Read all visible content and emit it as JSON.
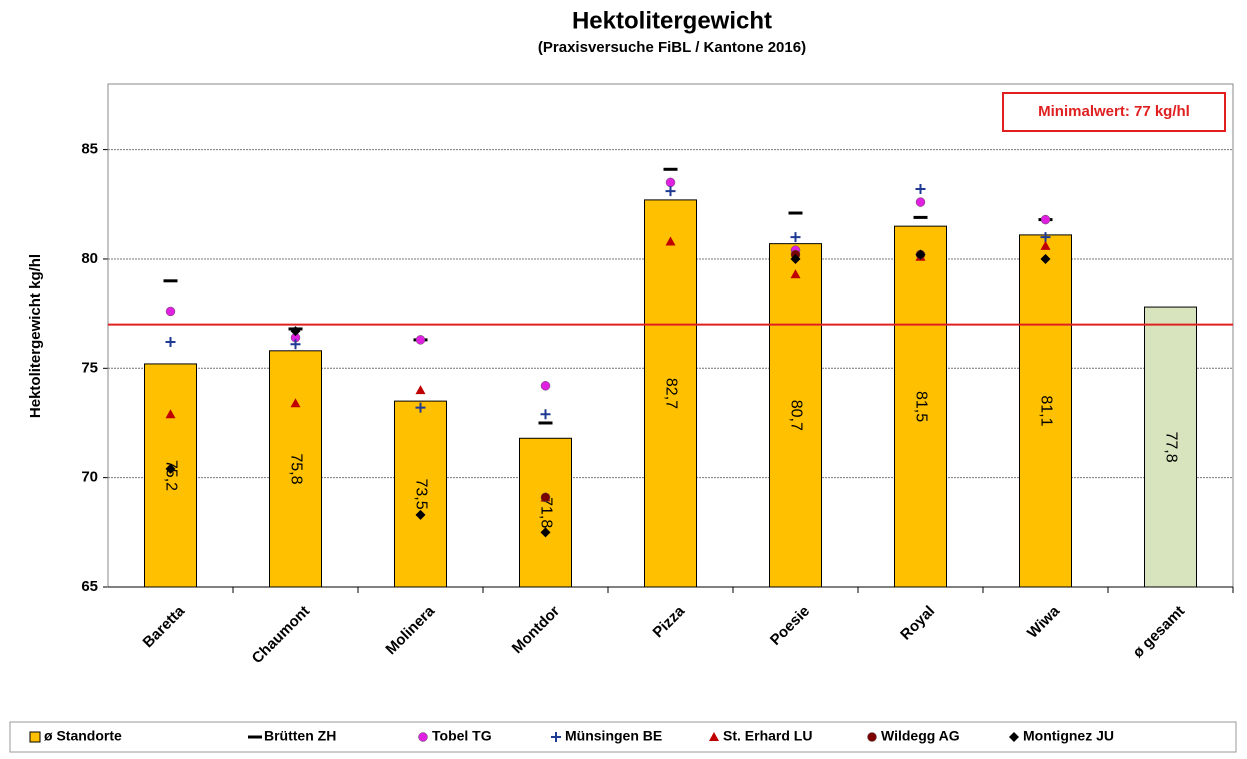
{
  "chart_data": {
    "type": "bar",
    "title": "Hektolitergewicht",
    "subtitle": "(Praxisversuche FiBL / Kantone 2016)",
    "y_label": "Hektolitergewicht kg/hl",
    "categories": [
      "Baretta",
      "Chaumont",
      "Molinera",
      "Montdor",
      "Pizza",
      "Poesie",
      "Royal",
      "Wiwa",
      "ø gesamt"
    ],
    "bar_series": {
      "name": "ø Standorte",
      "color": "#ffc000",
      "colors": [
        "#ffc000",
        "#ffc000",
        "#ffc000",
        "#ffc000",
        "#ffc000",
        "#ffc000",
        "#ffc000",
        "#ffc000",
        "#d7e4bd"
      ],
      "values": [
        75.2,
        75.8,
        73.5,
        71.8,
        82.7,
        80.7,
        81.5,
        81.1,
        77.8
      ],
      "value_labels": [
        "75,2",
        "75,8",
        "73,5",
        "71,8",
        "82,7",
        "80,7",
        "81,5",
        "81,1",
        "77,8"
      ]
    },
    "series": [
      {
        "name": "Brütten ZH",
        "color": "#000000",
        "marker": "dash",
        "values": [
          79.0,
          76.8,
          76.3,
          72.5,
          84.1,
          82.1,
          81.9,
          81.8,
          null
        ]
      },
      {
        "name": "Tobel TG",
        "color": "#e020e0",
        "marker": "circle",
        "values": [
          77.6,
          76.4,
          76.3,
          74.2,
          83.5,
          80.4,
          82.6,
          81.8,
          null
        ]
      },
      {
        "name": "Münsingen BE",
        "color": "#1f3a93",
        "marker": "plus",
        "values": [
          76.2,
          76.1,
          73.2,
          72.9,
          83.1,
          81.0,
          83.2,
          81.0,
          null
        ]
      },
      {
        "name": "St. Erhard LU",
        "color": "#c00000",
        "marker": "triangle",
        "values": [
          72.9,
          73.4,
          74.0,
          69.1,
          80.8,
          79.3,
          80.1,
          80.6,
          null
        ]
      },
      {
        "name": "Wildegg AG",
        "color": "#7b0000",
        "marker": "circle",
        "values": [
          null,
          null,
          null,
          69.1,
          null,
          80.2,
          80.2,
          null,
          null
        ]
      },
      {
        "name": "Montignez JU",
        "color": "#000000",
        "marker": "diamond",
        "values": [
          70.4,
          76.7,
          68.3,
          67.5,
          null,
          80.0,
          80.2,
          80.0,
          null
        ]
      }
    ],
    "threshold": {
      "value": 77,
      "label": "Minimalwert: 77 kg/hl",
      "color": "#e02020"
    },
    "ylim": [
      65,
      88
    ],
    "yticks": [
      65,
      70,
      75,
      80,
      85
    ],
    "grid": true
  }
}
